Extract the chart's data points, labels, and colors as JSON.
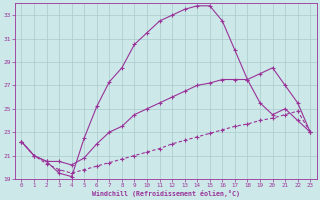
{
  "bg_color": "#cde8e8",
  "line_color": "#993399",
  "grid_color": "#aacccc",
  "xlim": [
    -0.5,
    23.5
  ],
  "ylim": [
    19,
    34
  ],
  "xticks": [
    0,
    1,
    2,
    3,
    4,
    5,
    6,
    7,
    8,
    9,
    10,
    11,
    12,
    13,
    14,
    15,
    16,
    17,
    18,
    19,
    20,
    21,
    22,
    23
  ],
  "yticks": [
    19,
    21,
    23,
    25,
    27,
    29,
    31,
    33
  ],
  "xlabel": "Windchill (Refroidissement éolien,°C)",
  "line1_x": [
    0,
    1,
    2,
    3,
    4,
    5,
    6,
    7,
    8,
    9,
    10,
    11,
    12,
    13,
    14,
    15,
    16,
    17,
    18,
    19,
    20,
    21,
    22,
    23
  ],
  "line1_y": [
    22.2,
    21.0,
    20.5,
    19.5,
    19.2,
    22.5,
    25.2,
    27.3,
    28.5,
    30.5,
    31.5,
    32.5,
    33.0,
    33.5,
    33.8,
    33.8,
    32.5,
    30.0,
    27.5,
    25.5,
    24.5,
    25.0,
    24.0,
    23.0
  ],
  "line2_x": [
    0,
    1,
    2,
    3,
    4,
    5,
    6,
    7,
    8,
    9,
    10,
    11,
    12,
    13,
    14,
    15,
    16,
    17,
    18,
    19,
    20,
    21,
    22,
    23
  ],
  "line2_y": [
    22.2,
    21.0,
    20.5,
    20.5,
    20.2,
    20.8,
    22.0,
    23.0,
    23.5,
    24.5,
    25.0,
    25.5,
    26.0,
    26.5,
    27.0,
    27.2,
    27.5,
    27.5,
    27.5,
    28.0,
    28.5,
    27.0,
    25.5,
    23.0
  ],
  "line3_x": [
    0,
    1,
    2,
    3,
    4,
    5,
    6,
    7,
    8,
    9,
    10,
    11,
    12,
    13,
    14,
    15,
    16,
    17,
    18,
    19,
    20,
    21,
    22,
    23
  ],
  "line3_y": [
    22.2,
    21.0,
    20.3,
    19.8,
    19.5,
    19.8,
    20.1,
    20.4,
    20.7,
    21.0,
    21.3,
    21.6,
    22.0,
    22.3,
    22.6,
    22.9,
    23.2,
    23.5,
    23.7,
    24.0,
    24.2,
    24.5,
    24.8,
    23.0
  ]
}
